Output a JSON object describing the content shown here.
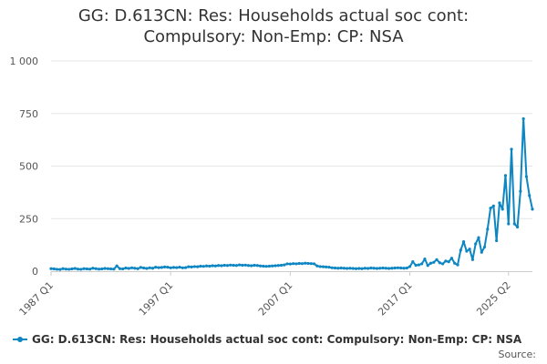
{
  "chart_data": {
    "type": "line",
    "title_lines": [
      "GG: D.613CN: Res: Households actual soc cont:",
      "Compulsory: Non-Emp: CP: NSA"
    ],
    "series": [
      {
        "name": "GG: D.613CN: Res: Households actual soc cont: Compulsory: Non-Emp: CP: NSA",
        "color": "#0d86c2",
        "x_start": "1987 Q1",
        "values": [
          12,
          11,
          9,
          8,
          12,
          10,
          9,
          11,
          13,
          10,
          9,
          12,
          11,
          10,
          14,
          12,
          10,
          11,
          13,
          12,
          11,
          10,
          25,
          12,
          11,
          15,
          13,
          16,
          14,
          12,
          18,
          15,
          13,
          16,
          14,
          19,
          17,
          18,
          20,
          19,
          16,
          18,
          17,
          19,
          16,
          17,
          21,
          20,
          22,
          21,
          24,
          23,
          25,
          24,
          26,
          25,
          27,
          26,
          28,
          27,
          29,
          28,
          27,
          30,
          28,
          29,
          27,
          26,
          28,
          27,
          25,
          24,
          23,
          24,
          25,
          26,
          27,
          28,
          30,
          35,
          34,
          36,
          35,
          37,
          36,
          38,
          37,
          36,
          35,
          25,
          22,
          21,
          20,
          19,
          16,
          15,
          14,
          15,
          14,
          13,
          14,
          13,
          12,
          13,
          12,
          14,
          13,
          15,
          14,
          13,
          14,
          15,
          14,
          13,
          14,
          15,
          16,
          15,
          14,
          15,
          22,
          45,
          28,
          30,
          35,
          58,
          27,
          38,
          42,
          55,
          40,
          35,
          48,
          45,
          62,
          38,
          30,
          100,
          140,
          95,
          105,
          55,
          130,
          160,
          90,
          115,
          200,
          300,
          310,
          145,
          325,
          295,
          455,
          225,
          580,
          225,
          210,
          380,
          725,
          450,
          360,
          295
        ]
      }
    ],
    "x_ticks": [
      "1987 Q1",
      "1997 Q1",
      "2007 Q1",
      "2017 Q1",
      "2025 Q2"
    ],
    "y_ticks": [
      "0",
      "250",
      "500",
      "750",
      "1 000"
    ],
    "ylim": [
      0,
      1000
    ],
    "grid": "horizontal",
    "legend_position": "bottom-left"
  },
  "source_label": "Source:"
}
